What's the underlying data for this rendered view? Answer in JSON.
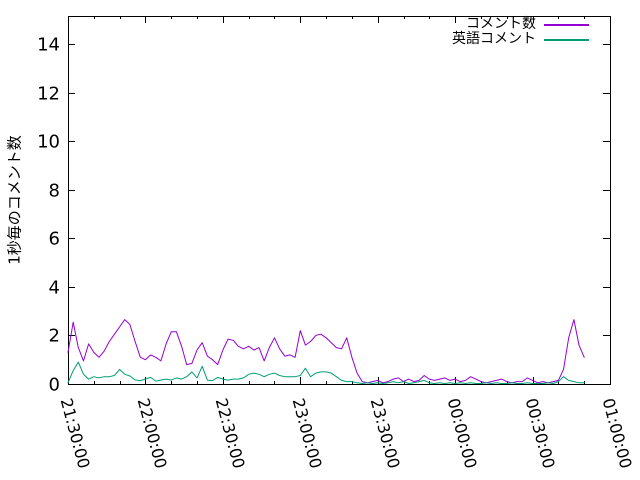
{
  "chart_data": {
    "type": "line",
    "title": "",
    "xlabel": "",
    "ylabel": "1秒毎のコメント数",
    "grid": false,
    "legend_position": "top-right-inside",
    "ylim": [
      0,
      15.15
    ],
    "y_ticks": [
      0,
      2,
      4,
      6,
      8,
      10,
      12,
      14
    ],
    "x_range_minutes": [
      0,
      210
    ],
    "x_major_ticks": [
      {
        "minutes": 0,
        "label": "21:30:00"
      },
      {
        "minutes": 30,
        "label": "22:00:00"
      },
      {
        "minutes": 60,
        "label": "22:30:00"
      },
      {
        "minutes": 90,
        "label": "23:00:00"
      },
      {
        "minutes": 120,
        "label": "23:30:00"
      },
      {
        "minutes": 150,
        "label": "00:00:00"
      },
      {
        "minutes": 180,
        "label": "00:30:00"
      },
      {
        "minutes": 210,
        "label": "01:00:00"
      }
    ],
    "x_minor_interval_minutes": 10,
    "x_minutes": [
      0,
      2,
      4,
      6,
      8,
      10,
      12,
      14,
      16,
      18,
      20,
      22,
      24,
      26,
      28,
      30,
      32,
      34,
      36,
      38,
      40,
      42,
      44,
      46,
      48,
      50,
      52,
      54,
      56,
      58,
      60,
      62,
      64,
      66,
      68,
      70,
      72,
      74,
      76,
      78,
      80,
      82,
      84,
      86,
      88,
      90,
      92,
      94,
      96,
      98,
      100,
      102,
      104,
      106,
      108,
      110,
      112,
      114,
      116,
      118,
      120,
      122,
      124,
      126,
      128,
      130,
      132,
      134,
      136,
      138,
      140,
      142,
      144,
      146,
      148,
      150,
      152,
      154,
      156,
      158,
      160,
      162,
      164,
      166,
      168,
      170,
      172,
      174,
      176,
      178,
      180,
      182,
      184,
      186,
      188,
      190,
      192,
      194,
      196,
      198,
      200
    ],
    "series": [
      {
        "name": "コメント数",
        "color": "#9400d3",
        "values": [
          1.3,
          2.55,
          1.5,
          0.95,
          1.65,
          1.3,
          1.1,
          1.35,
          1.75,
          2.05,
          2.35,
          2.65,
          2.45,
          1.75,
          1.1,
          1.0,
          1.2,
          1.1,
          0.95,
          1.65,
          2.15,
          2.15,
          1.55,
          0.8,
          0.85,
          1.4,
          1.7,
          1.15,
          1.0,
          0.8,
          1.4,
          1.85,
          1.8,
          1.55,
          1.45,
          1.55,
          1.4,
          1.5,
          0.95,
          1.5,
          1.9,
          1.45,
          1.15,
          1.2,
          1.1,
          2.2,
          1.6,
          1.75,
          2.0,
          2.05,
          1.9,
          1.7,
          1.5,
          1.45,
          1.9,
          1.1,
          0.45,
          0.1,
          0.05,
          0.1,
          0.15,
          0.05,
          0.1,
          0.2,
          0.25,
          0.1,
          0.2,
          0.1,
          0.15,
          0.35,
          0.2,
          0.15,
          0.2,
          0.25,
          0.15,
          0.2,
          0.1,
          0.15,
          0.3,
          0.2,
          0.1,
          0.05,
          0.1,
          0.15,
          0.2,
          0.1,
          0.05,
          0.1,
          0.1,
          0.25,
          0.15,
          0.05,
          0.1,
          0.05,
          0.1,
          0.15,
          0.6,
          1.9,
          2.65,
          1.6,
          1.1
        ]
      },
      {
        "name": "英語コメント",
        "color": "#009e73",
        "values": [
          0.05,
          0.55,
          0.9,
          0.4,
          0.2,
          0.3,
          0.25,
          0.3,
          0.3,
          0.35,
          0.6,
          0.4,
          0.33,
          0.17,
          0.14,
          0.2,
          0.27,
          0.12,
          0.16,
          0.2,
          0.16,
          0.25,
          0.2,
          0.3,
          0.5,
          0.25,
          0.73,
          0.16,
          0.14,
          0.27,
          0.2,
          0.16,
          0.2,
          0.2,
          0.25,
          0.4,
          0.45,
          0.4,
          0.3,
          0.4,
          0.45,
          0.35,
          0.3,
          0.3,
          0.3,
          0.35,
          0.65,
          0.3,
          0.45,
          0.5,
          0.5,
          0.45,
          0.3,
          0.15,
          0.1,
          0.1,
          0.05,
          0.02,
          0.05,
          0.02,
          0.05,
          0.02,
          0.05,
          0.1,
          0.05,
          0.1,
          0.02,
          0.05,
          0.1,
          0.15,
          0.05,
          0.02,
          0.05,
          0.02,
          0.05,
          0.02,
          0.05,
          0.02,
          0.05,
          0.02,
          0.02,
          0.05,
          0.02,
          0.05,
          0.02,
          0.02,
          0.05,
          0.02,
          0.02,
          0.05,
          0.02,
          0.02,
          0.02,
          0.05,
          0.02,
          0.1,
          0.3,
          0.15,
          0.1,
          0.05,
          0.05
        ]
      }
    ]
  }
}
